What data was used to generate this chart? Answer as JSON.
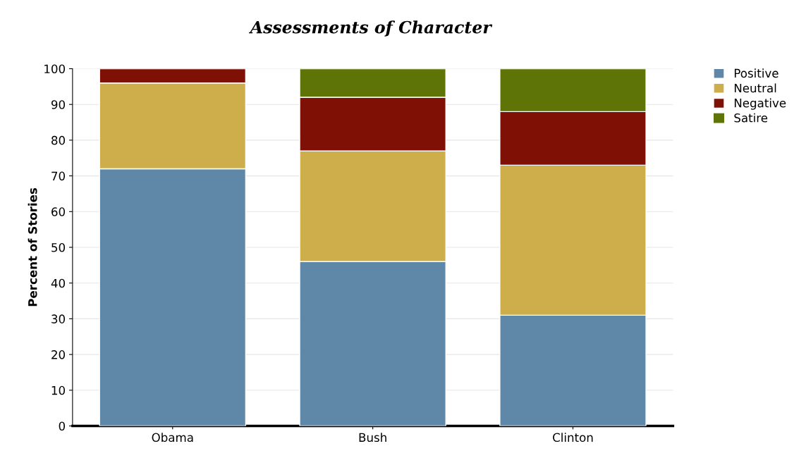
{
  "chart_data": {
    "type": "bar",
    "stacked": true,
    "title": "Assessments of Character",
    "ylabel": "Percent of Stories",
    "categories": [
      "Obama",
      "Bush",
      "Clinton"
    ],
    "series": [
      {
        "name": "Positive",
        "color": "#5f87a8",
        "values": [
          72,
          46,
          31
        ]
      },
      {
        "name": "Neutral",
        "color": "#ceae4a",
        "values": [
          24,
          31,
          42
        ]
      },
      {
        "name": "Negative",
        "color": "#7f1006",
        "values": [
          4,
          15,
          15
        ]
      },
      {
        "name": "Satire",
        "color": "#5f7406",
        "values": [
          0,
          8,
          12
        ]
      }
    ],
    "ylim": [
      0,
      100
    ],
    "yticks": [
      0,
      10,
      20,
      30,
      40,
      50,
      60,
      70,
      80,
      90,
      100
    ],
    "grid": "y",
    "legend": "top right"
  }
}
